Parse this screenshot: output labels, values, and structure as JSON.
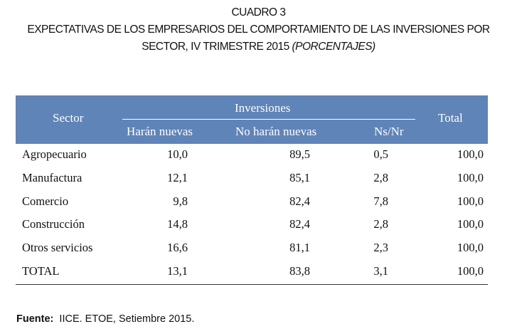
{
  "title": {
    "line1": "CUADRO 3",
    "line2": "EXPECTATIVAS DE LOS EMPRESARIOS DEL COMPORTAMIENTO DE LAS INVERSIONES POR",
    "line3_main": "SECTOR, IV TRIMESTRE 2015",
    "line3_italic": "(PORCENTAJES)"
  },
  "table": {
    "header": {
      "sector": "Sector",
      "group": "Inversiones",
      "total": "Total",
      "sub": [
        "Harán nuevas",
        "No harán nuevas",
        "Ns/Nr"
      ]
    },
    "rows": [
      {
        "sector": "Agropecuario",
        "haran_nuevas": "10,0",
        "no_haran_nuevas": "89,5",
        "ns_nr": "0,5",
        "total": "100,0"
      },
      {
        "sector": "Manufactura",
        "haran_nuevas": "12,1",
        "no_haran_nuevas": "85,1",
        "ns_nr": "2,8",
        "total": "100,0"
      },
      {
        "sector": "Comercio",
        "haran_nuevas": "9,8",
        "no_haran_nuevas": "82,4",
        "ns_nr": "7,8",
        "total": "100,0"
      },
      {
        "sector": "Construcción",
        "haran_nuevas": "14,8",
        "no_haran_nuevas": "82,4",
        "ns_nr": "2,8",
        "total": "100,0"
      },
      {
        "sector": "Otros servicios",
        "haran_nuevas": "16,6",
        "no_haran_nuevas": "81,1",
        "ns_nr": "2,3",
        "total": "100,0"
      },
      {
        "sector": "TOTAL",
        "haran_nuevas": "13,1",
        "no_haran_nuevas": "83,8",
        "ns_nr": "3,1",
        "total": "100,0"
      }
    ]
  },
  "source": {
    "label": "Fuente:",
    "text": "IICE. ETOE, Setiembre 2015."
  },
  "colors": {
    "header_bg": "#5f84b8",
    "header_text": "#ffffff"
  }
}
